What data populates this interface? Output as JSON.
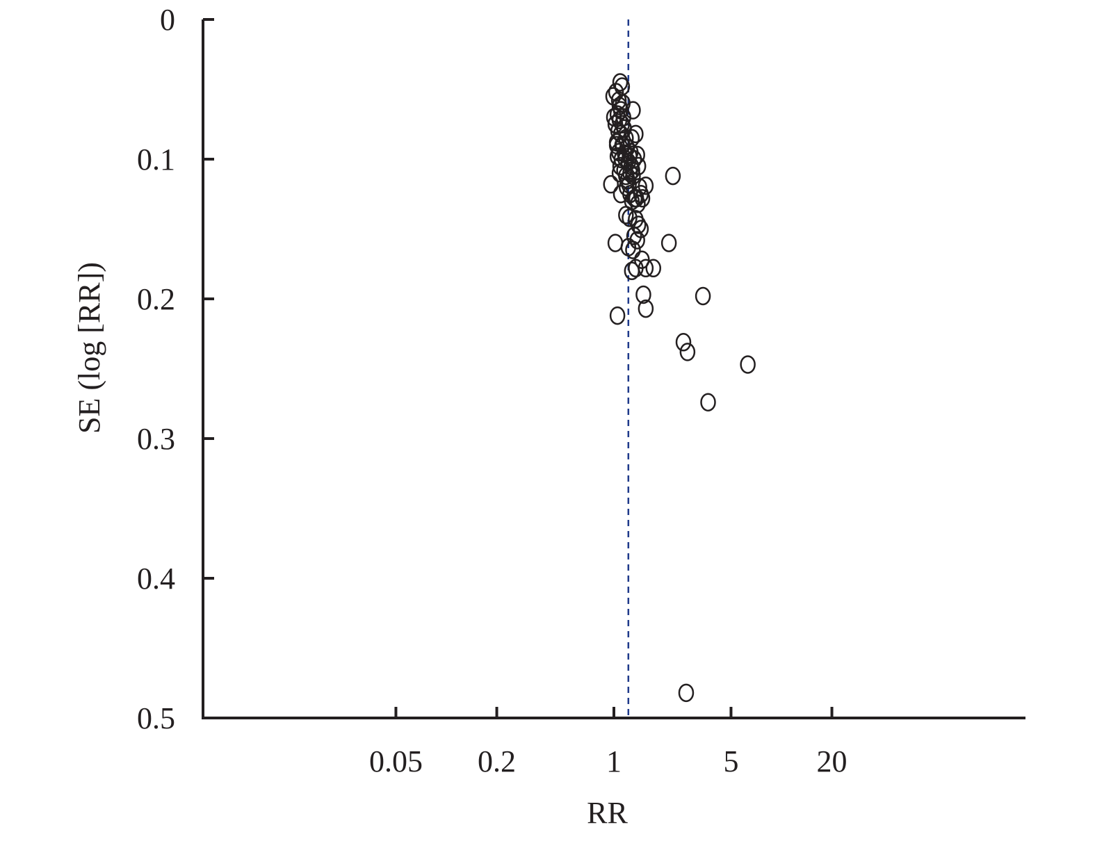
{
  "chart_data": {
    "type": "scatter",
    "title": "",
    "xlabel": "RR",
    "ylabel": "SE (log [RR])",
    "x_scale": "log",
    "x_ticks": [
      0.05,
      0.2,
      1,
      5,
      20
    ],
    "x_tick_labels": [
      "0.05",
      "0.2",
      "1",
      "5",
      "20"
    ],
    "y_ticks": [
      0,
      0.1,
      0.2,
      0.3,
      0.4,
      0.5
    ],
    "y_tick_labels": [
      "0",
      "0.1",
      "0.2",
      "0.3",
      "0.4",
      "0.5"
    ],
    "ylim": [
      0,
      0.5
    ],
    "y_inverted": true,
    "grid": false,
    "reference_line": {
      "x": 1.22,
      "style": "dashed",
      "color": "#1f3a8a"
    },
    "marker": "open-circle",
    "series": [
      {
        "points": [
          [
            0.99,
            0.055
          ],
          [
            1.03,
            0.052
          ],
          [
            1.09,
            0.045
          ],
          [
            1.12,
            0.048
          ],
          [
            1.07,
            0.058
          ],
          [
            1.13,
            0.06
          ],
          [
            1.1,
            0.065
          ],
          [
            1.05,
            0.068
          ],
          [
            1.14,
            0.07
          ],
          [
            1.08,
            0.072
          ],
          [
            1.02,
            0.075
          ],
          [
            1.12,
            0.075
          ],
          [
            1.15,
            0.078
          ],
          [
            1.06,
            0.08
          ],
          [
            1.1,
            0.082
          ],
          [
            1.18,
            0.085
          ],
          [
            1.04,
            0.088
          ],
          [
            1.13,
            0.09
          ],
          [
            1.2,
            0.092
          ],
          [
            1.07,
            0.095
          ],
          [
            1.16,
            0.096
          ],
          [
            1.24,
            0.098
          ],
          [
            1.11,
            0.1
          ],
          [
            1.22,
            0.102
          ],
          [
            1.09,
            0.105
          ],
          [
            1.27,
            0.105
          ],
          [
            1.15,
            0.108
          ],
          [
            1.25,
            0.11
          ],
          [
            1.18,
            0.112
          ],
          [
            1.3,
            0.112
          ],
          [
            1.05,
            0.098
          ],
          [
            1.21,
            0.115
          ],
          [
            1.23,
            0.118
          ],
          [
            1.19,
            0.12
          ],
          [
            1.29,
            0.108
          ],
          [
            1.26,
            0.095
          ],
          [
            1.32,
            0.1
          ],
          [
            1.28,
            0.085
          ],
          [
            1.3,
            0.065
          ],
          [
            1.35,
            0.082
          ],
          [
            1.38,
            0.097
          ],
          [
            1.4,
            0.105
          ],
          [
            1.42,
            0.12
          ],
          [
            1.45,
            0.125
          ],
          [
            1.36,
            0.128
          ],
          [
            1.39,
            0.132
          ],
          [
            1.48,
            0.128
          ],
          [
            1.55,
            0.119
          ],
          [
            1.25,
            0.125
          ],
          [
            1.28,
            0.13
          ],
          [
            1.33,
            0.128
          ],
          [
            1.35,
            0.143
          ],
          [
            1.4,
            0.147
          ],
          [
            1.45,
            0.15
          ],
          [
            1.32,
            0.155
          ],
          [
            1.38,
            0.158
          ],
          [
            1.3,
            0.165
          ],
          [
            1.22,
            0.163
          ],
          [
            1.35,
            0.178
          ],
          [
            1.28,
            0.18
          ],
          [
            1.47,
            0.172
          ],
          [
            1.55,
            0.178
          ],
          [
            1.72,
            0.178
          ],
          [
            1.5,
            0.197
          ],
          [
            1.55,
            0.207
          ],
          [
            0.96,
            0.118
          ],
          [
            1.02,
            0.16
          ],
          [
            1.05,
            0.212
          ],
          [
            1.1,
            0.125
          ],
          [
            1.18,
            0.14
          ],
          [
            1.24,
            0.142
          ],
          [
            2.13,
            0.16
          ],
          [
            2.25,
            0.112
          ],
          [
            2.6,
            0.231
          ],
          [
            2.75,
            0.238
          ],
          [
            3.4,
            0.198
          ],
          [
            3.65,
            0.274
          ],
          [
            6.3,
            0.247
          ],
          [
            2.7,
            0.482
          ],
          [
            1.08,
            0.062
          ],
          [
            1.0,
            0.07
          ],
          [
            1.04,
            0.09
          ],
          [
            1.12,
            0.09
          ],
          [
            1.17,
            0.1
          ],
          [
            1.08,
            0.11
          ]
        ]
      }
    ]
  }
}
